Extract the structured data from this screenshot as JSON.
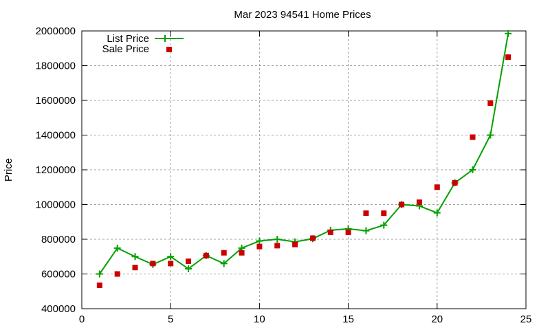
{
  "chart_data": {
    "type": "line",
    "title": "Mar 2023 94541 Home Prices",
    "xlabel": "",
    "ylabel": "Price",
    "xlim": [
      0,
      25
    ],
    "ylim": [
      400000,
      2000000
    ],
    "xticks": [
      0,
      5,
      10,
      15,
      20,
      25
    ],
    "yticks": [
      400000,
      600000,
      800000,
      1000000,
      1200000,
      1400000,
      1600000,
      1800000,
      2000000
    ],
    "grid": true,
    "legend_position": "top-left",
    "x": [
      1,
      2,
      3,
      4,
      5,
      6,
      7,
      8,
      9,
      10,
      11,
      12,
      13,
      14,
      15,
      16,
      17,
      18,
      19,
      20,
      21,
      22,
      23,
      24
    ],
    "series": [
      {
        "name": "List Price",
        "style": "linespoints",
        "color": "#00a000",
        "marker": "plus",
        "values": [
          600000,
          749000,
          700000,
          655000,
          700000,
          630000,
          706000,
          660000,
          749000,
          790000,
          800000,
          785000,
          803000,
          852000,
          860000,
          849000,
          881000,
          1000000,
          992000,
          952000,
          1125000,
          1200000,
          1400000,
          1985000
        ]
      },
      {
        "name": "Sale Price",
        "style": "points",
        "color": "#cc0000",
        "marker": "square",
        "values": [
          535000,
          600000,
          637000,
          660000,
          660000,
          673000,
          706000,
          722000,
          722000,
          758000,
          763000,
          770000,
          806000,
          840000,
          840000,
          950000,
          950000,
          1000000,
          1013000,
          1100000,
          1125000,
          1388000,
          1584000,
          1849000
        ]
      }
    ]
  }
}
